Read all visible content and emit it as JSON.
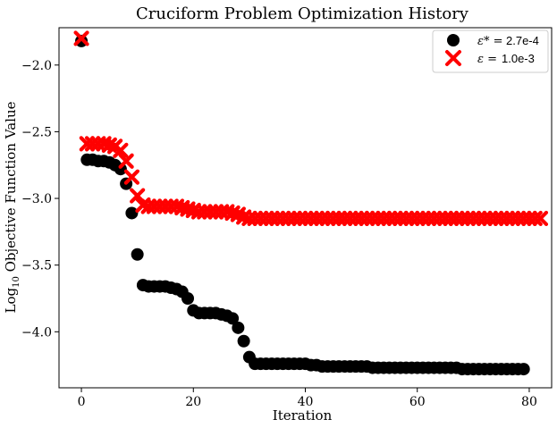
{
  "chart_data": {
    "type": "scatter",
    "title": "Cruciform Problem Optimization History",
    "xlabel": "Iteration",
    "ylabel_prefix": "Log",
    "ylabel_sub": "10",
    "ylabel_rest": " Objective Function Value",
    "xlim": [
      -4,
      84
    ],
    "ylim": [
      -4.42,
      -1.72
    ],
    "xticks": [
      0,
      20,
      40,
      60,
      80
    ],
    "xtick_labels": [
      "0",
      "20",
      "40",
      "60",
      "80"
    ],
    "yticks": [
      -2.0,
      -2.5,
      -3.0,
      -3.5,
      -4.0
    ],
    "ytick_labels": [
      "−2.0",
      "−2.5",
      "−3.0",
      "−3.5",
      "−4.0"
    ],
    "grid": false,
    "legend_position": "top-right",
    "series": [
      {
        "name": "ε* = 2.7e-4",
        "legend_lhs": "ε* = ",
        "legend_rhs": "2.7e-4",
        "marker": "circle",
        "color": "#000000",
        "x": [
          0,
          1,
          2,
          3,
          4,
          5,
          6,
          7,
          8,
          9,
          10,
          11,
          12,
          13,
          14,
          15,
          16,
          17,
          18,
          19,
          20,
          21,
          22,
          23,
          24,
          25,
          26,
          27,
          28,
          29,
          30,
          31,
          32,
          33,
          34,
          35,
          36,
          37,
          38,
          39,
          40,
          41,
          42,
          43,
          44,
          45,
          46,
          47,
          48,
          49,
          50,
          51,
          52,
          53,
          54,
          55,
          56,
          57,
          58,
          59,
          60,
          61,
          62,
          63,
          64,
          65,
          66,
          67,
          68,
          69,
          70,
          71,
          72,
          73,
          74,
          75,
          76,
          77,
          78,
          79
        ],
        "y": [
          -1.82,
          -2.71,
          -2.71,
          -2.72,
          -2.72,
          -2.73,
          -2.75,
          -2.78,
          -2.89,
          -3.11,
          -3.42,
          -3.65,
          -3.66,
          -3.66,
          -3.66,
          -3.66,
          -3.67,
          -3.68,
          -3.7,
          -3.75,
          -3.84,
          -3.86,
          -3.86,
          -3.86,
          -3.86,
          -3.87,
          -3.88,
          -3.9,
          -3.97,
          -4.07,
          -4.19,
          -4.24,
          -4.24,
          -4.24,
          -4.24,
          -4.24,
          -4.24,
          -4.24,
          -4.24,
          -4.24,
          -4.24,
          -4.25,
          -4.25,
          -4.26,
          -4.26,
          -4.26,
          -4.26,
          -4.26,
          -4.26,
          -4.26,
          -4.26,
          -4.26,
          -4.27,
          -4.27,
          -4.27,
          -4.27,
          -4.27,
          -4.27,
          -4.27,
          -4.27,
          -4.27,
          -4.27,
          -4.27,
          -4.27,
          -4.27,
          -4.27,
          -4.27,
          -4.27,
          -4.28,
          -4.28,
          -4.28,
          -4.28,
          -4.28,
          -4.28,
          -4.28,
          -4.28,
          -4.28,
          -4.28,
          -4.28,
          -4.28
        ]
      },
      {
        "name": "ε = 1.0e-3",
        "legend_lhs": "ε = ",
        "legend_rhs": "1.0e-3",
        "marker": "x",
        "color": "#ff0000",
        "x": [
          0,
          1,
          2,
          3,
          4,
          5,
          6,
          7,
          8,
          9,
          10,
          11,
          12,
          13,
          14,
          15,
          16,
          17,
          18,
          19,
          20,
          21,
          22,
          23,
          24,
          25,
          26,
          27,
          28,
          29,
          30,
          31,
          32,
          33,
          34,
          35,
          36,
          37,
          38,
          39,
          40,
          41,
          42,
          43,
          44,
          45,
          46,
          47,
          48,
          49,
          50,
          51,
          52,
          53,
          54,
          55,
          56,
          57,
          58,
          59,
          60,
          61,
          62,
          63,
          64,
          65,
          66,
          67,
          68,
          69,
          70,
          71,
          72,
          73,
          74,
          75,
          76,
          77,
          78,
          79,
          80,
          81,
          82
        ],
        "y": [
          -1.8,
          -2.59,
          -2.59,
          -2.59,
          -2.59,
          -2.6,
          -2.61,
          -2.64,
          -2.72,
          -2.84,
          -2.98,
          -3.05,
          -3.06,
          -3.06,
          -3.06,
          -3.06,
          -3.06,
          -3.06,
          -3.07,
          -3.08,
          -3.09,
          -3.1,
          -3.1,
          -3.1,
          -3.1,
          -3.1,
          -3.1,
          -3.11,
          -3.12,
          -3.14,
          -3.15,
          -3.15,
          -3.15,
          -3.15,
          -3.15,
          -3.15,
          -3.15,
          -3.15,
          -3.15,
          -3.15,
          -3.15,
          -3.15,
          -3.15,
          -3.15,
          -3.15,
          -3.15,
          -3.15,
          -3.15,
          -3.15,
          -3.15,
          -3.15,
          -3.15,
          -3.15,
          -3.15,
          -3.15,
          -3.15,
          -3.15,
          -3.15,
          -3.15,
          -3.15,
          -3.15,
          -3.15,
          -3.15,
          -3.15,
          -3.15,
          -3.15,
          -3.15,
          -3.15,
          -3.15,
          -3.15,
          -3.15,
          -3.15,
          -3.15,
          -3.15,
          -3.15,
          -3.15,
          -3.15,
          -3.15,
          -3.15,
          -3.15,
          -3.15,
          -3.15,
          -3.15
        ]
      }
    ]
  }
}
